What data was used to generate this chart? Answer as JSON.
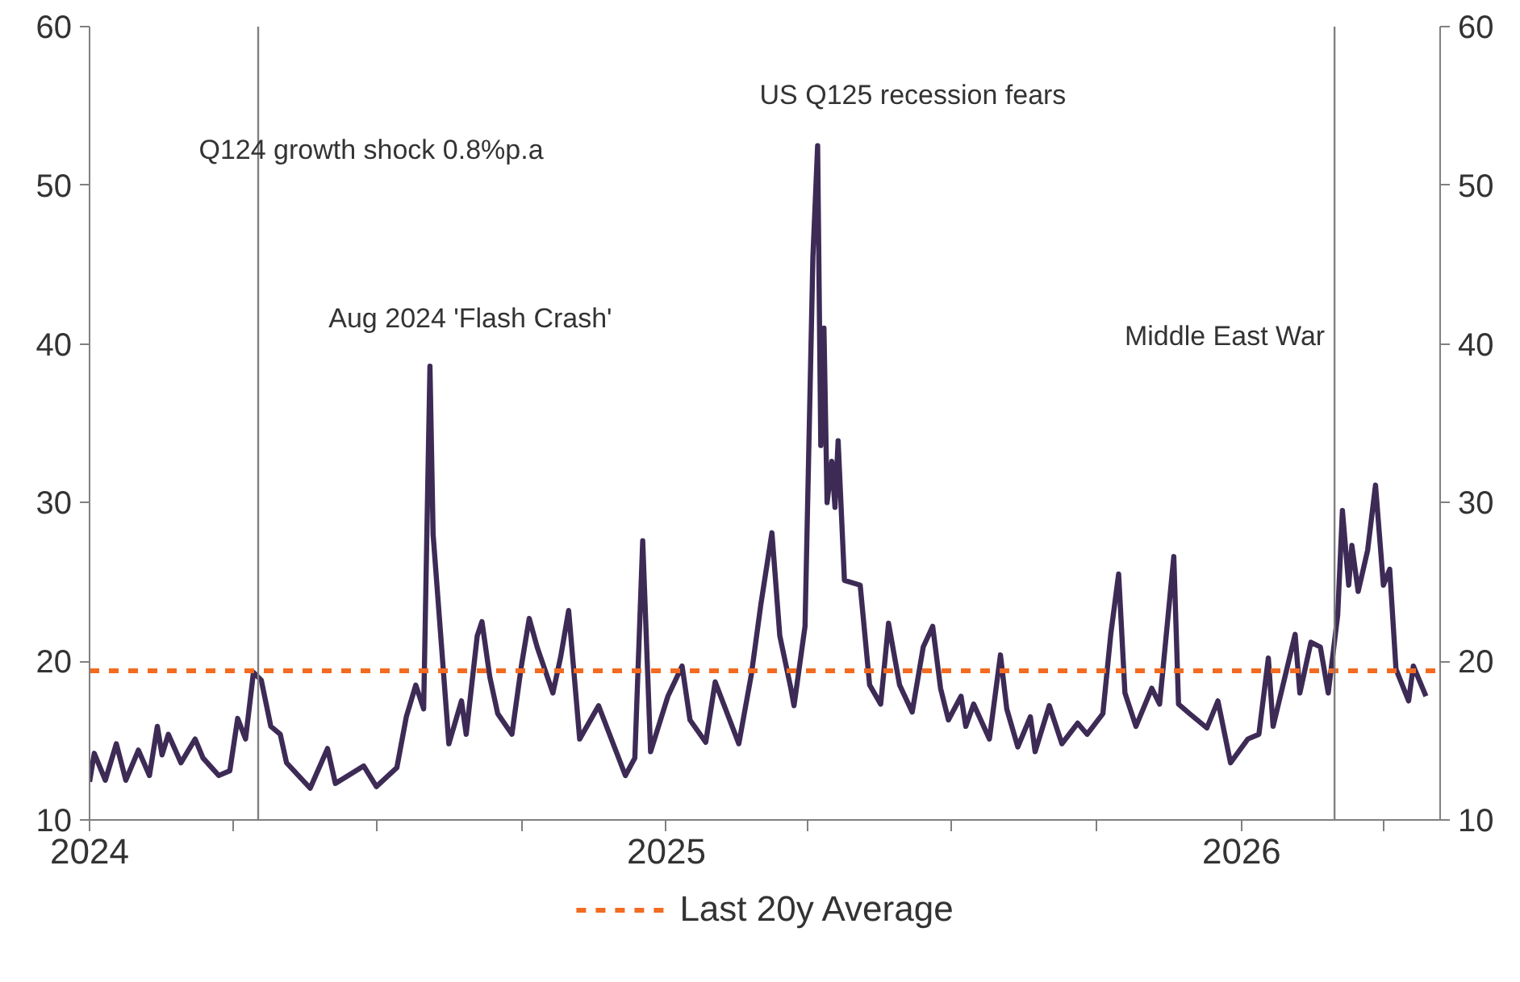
{
  "chart_data": {
    "type": "line",
    "x": [
      "2024-01-01",
      "2024-01-04",
      "2024-01-11",
      "2024-01-18",
      "2024-01-24",
      "2024-02-01",
      "2024-02-08",
      "2024-02-13",
      "2024-02-16",
      "2024-02-20",
      "2024-02-28",
      "2024-03-08",
      "2024-03-13",
      "2024-03-23",
      "2024-03-30",
      "2024-04-04",
      "2024-04-09",
      "2024-04-14",
      "2024-04-19",
      "2024-04-25",
      "2024-05-01",
      "2024-05-05",
      "2024-05-20",
      "2024-05-31",
      "2024-06-05",
      "2024-06-23",
      "2024-07-01",
      "2024-07-14",
      "2024-07-20",
      "2024-07-26",
      "2024-07-31",
      "2024-08-04",
      "2024-08-06",
      "2024-08-16",
      "2024-08-24",
      "2024-08-27",
      "2024-09-03",
      "2024-09-06",
      "2024-09-11",
      "2024-09-16",
      "2024-09-25",
      "2024-10-01",
      "2024-10-06",
      "2024-10-11",
      "2024-10-21",
      "2024-10-26",
      "2024-10-31",
      "2024-11-07",
      "2024-11-19",
      "2024-12-06",
      "2024-12-12",
      "2024-12-17",
      "2024-12-22",
      "2025-01-02",
      "2025-01-11",
      "2025-01-16",
      "2025-01-26",
      "2025-02-01",
      "2025-02-16",
      "2025-02-24",
      "2025-03-02",
      "2025-03-09",
      "2025-03-14",
      "2025-03-21",
      "2025-03-23",
      "2025-03-30",
      "2025-04-04",
      "2025-04-07",
      "2025-04-09",
      "2025-04-11",
      "2025-04-13",
      "2025-04-16",
      "2025-04-18",
      "2025-04-20",
      "2025-04-24",
      "2025-05-04",
      "2025-05-10",
      "2025-05-17",
      "2025-05-22",
      "2025-05-29",
      "2025-06-06",
      "2025-06-13",
      "2025-06-19",
      "2025-06-24",
      "2025-06-29",
      "2025-07-07",
      "2025-07-10",
      "2025-07-15",
      "2025-07-25",
      "2025-08-01",
      "2025-08-05",
      "2025-08-12",
      "2025-08-20",
      "2025-08-23",
      "2025-09-01",
      "2025-09-09",
      "2025-09-19",
      "2025-09-25",
      "2025-10-05",
      "2025-10-10",
      "2025-10-15",
      "2025-10-19",
      "2025-10-26",
      "2025-11-05",
      "2025-11-10",
      "2025-11-19",
      "2025-11-22",
      "2025-11-29",
      "2025-12-10",
      "2025-12-17",
      "2025-12-25",
      "2026-01-05",
      "2026-01-12",
      "2026-01-18",
      "2026-01-21",
      "2026-02-04",
      "2026-02-07",
      "2026-02-14",
      "2026-02-20",
      "2026-02-25",
      "2026-03-03",
      "2026-03-06",
      "2026-03-10",
      "2026-03-12",
      "2026-03-16",
      "2026-03-22",
      "2026-03-27",
      "2026-04-01",
      "2026-04-05",
      "2026-04-09",
      "2026-04-17",
      "2026-04-20",
      "2026-04-28"
    ],
    "series": [
      {
        "color": "#3d2b56",
        "values": [
          12.4,
          14.2,
          12.5,
          14.8,
          12.5,
          14.4,
          12.8,
          15.9,
          14.1,
          15.4,
          13.6,
          15.1,
          13.9,
          12.8,
          13.1,
          16.4,
          15.1,
          19.3,
          18.8,
          15.9,
          15.4,
          13.6,
          12.0,
          14.5,
          12.3,
          13.4,
          12.1,
          13.3,
          16.5,
          18.5,
          17.0,
          38.6,
          28.0,
          14.8,
          17.5,
          15.4,
          21.6,
          22.5,
          19.0,
          16.7,
          15.4,
          19.7,
          22.7,
          20.9,
          18.0,
          20.3,
          23.2,
          15.1,
          17.2,
          12.8,
          13.9,
          27.6,
          14.3,
          17.8,
          19.7,
          16.3,
          14.9,
          18.7,
          14.8,
          19.2,
          23.6,
          28.1,
          21.6,
          18.3,
          17.2,
          22.2,
          45.5,
          52.5,
          33.6,
          41.0,
          30.0,
          32.6,
          29.7,
          33.9,
          25.1,
          24.8,
          18.5,
          17.3,
          22.4,
          18.5,
          16.8,
          20.9,
          22.2,
          18.3,
          16.3,
          17.8,
          15.9,
          17.3,
          15.1,
          20.4,
          17.0,
          14.6,
          16.5,
          14.3,
          17.2,
          14.8,
          16.1,
          15.4,
          16.7,
          21.7,
          25.5,
          18.0,
          15.9,
          18.3,
          17.3,
          26.6,
          17.3,
          16.7,
          15.8,
          17.5,
          13.6,
          15.1,
          15.4,
          20.2,
          15.9,
          21.7,
          18.0,
          21.2,
          20.9,
          18.0,
          22.9,
          29.5,
          24.8,
          27.3,
          24.4,
          27.0,
          31.1,
          24.8,
          25.8,
          19.5,
          17.5,
          19.7,
          17.8
        ]
      }
    ],
    "xlim": [
      "2024-01-01",
      "2026-05-07"
    ],
    "xticks": [
      {
        "value": "2024-01-01",
        "label": "2024"
      },
      {
        "value": "2024-04-01",
        "label": null
      },
      {
        "value": "2024-07-01",
        "label": null
      },
      {
        "value": "2024-10-01",
        "label": null
      },
      {
        "value": "2025-01-01",
        "label": "2025"
      },
      {
        "value": "2025-04-01",
        "label": null
      },
      {
        "value": "2025-07-01",
        "label": null
      },
      {
        "value": "2025-10-01",
        "label": null
      },
      {
        "value": "2026-01-01",
        "label": "2026"
      },
      {
        "value": "2026-04-01",
        "label": null
      }
    ],
    "ylim": [
      10,
      60
    ],
    "yticks": [
      10,
      20,
      30,
      40,
      50,
      60
    ],
    "y2lim": [
      10,
      60
    ],
    "y2ticks": [
      10,
      20,
      30,
      40,
      50,
      60
    ],
    "ref_lines": [
      {
        "axis": "y",
        "value": 19.4,
        "label": "Last 20y Average",
        "color": "#f26b21",
        "line_style": "dashed"
      },
      {
        "axis": "x",
        "value": "2024-04-17",
        "label": "Q124 growth shock 0.8%p.a",
        "color": "#808080"
      },
      {
        "axis": "x",
        "value": "2026-03-01",
        "label": "Middle East War",
        "color": "#808080"
      }
    ],
    "annotations": [
      {
        "text": "Aug 2024 'Flash Crash'",
        "x": "2024-08-04",
        "y": 38.6
      },
      {
        "text": "US Q125 recession fears",
        "x": "2025-04-07",
        "y": 52.5
      }
    ],
    "grid": false,
    "legend": "bottom",
    "line_style": "solid",
    "marker": "none"
  }
}
